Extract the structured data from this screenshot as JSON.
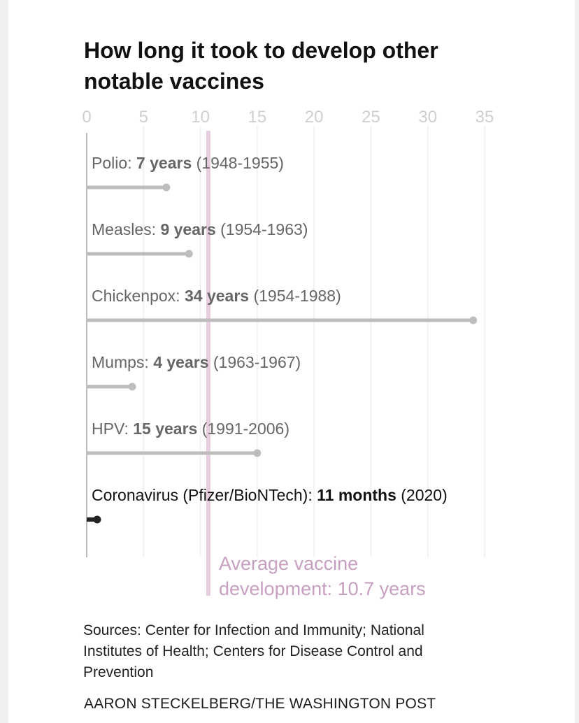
{
  "title": "How long it took to develop other notable vaccines",
  "sources": "Sources: Center for Infection and Immunity; National Institutes of Health; Centers for Disease Control and Prevention",
  "credit": "AARON STECKELBERG/THE WASHINGTON POST",
  "colors": {
    "bar": "#bdbdbd",
    "highlight_bar": "#222222",
    "average": "#e8cde0",
    "average_text": "#c79fc0",
    "grid": "#eeeeee",
    "tick": "#cfcfcf"
  },
  "chart_data": {
    "type": "bar",
    "orientation": "horizontal",
    "title": "How long it took to develop other notable vaccines",
    "xlim": [
      0,
      35
    ],
    "xticks": [
      0,
      5,
      10,
      15,
      20,
      25,
      30,
      35
    ],
    "grid": true,
    "bars": [
      {
        "name": "Polio",
        "value": 7,
        "label_value": "7 years",
        "range": "(1948-1955)",
        "highlight": false
      },
      {
        "name": "Measles",
        "value": 9,
        "label_value": "9 years",
        "range": "(1954-1963)",
        "highlight": false
      },
      {
        "name": "Chickenpox",
        "value": 34,
        "label_value": "34 years",
        "range": "(1954-1988)",
        "highlight": false
      },
      {
        "name": "Mumps",
        "value": 4,
        "label_value": "4 years",
        "range": "(1963-1967)",
        "highlight": false
      },
      {
        "name": "HPV",
        "value": 15,
        "label_value": "15 years",
        "range": "(1991-2006)",
        "highlight": false
      },
      {
        "name": "Coronavirus (Pfizer/BioNTech)",
        "value": 0.92,
        "label_value": "11 months",
        "range": "(2020)",
        "highlight": true
      }
    ],
    "average": {
      "value": 10.7,
      "label_line1": "Average vaccine",
      "label_line2": "development: 10.7 years"
    }
  }
}
